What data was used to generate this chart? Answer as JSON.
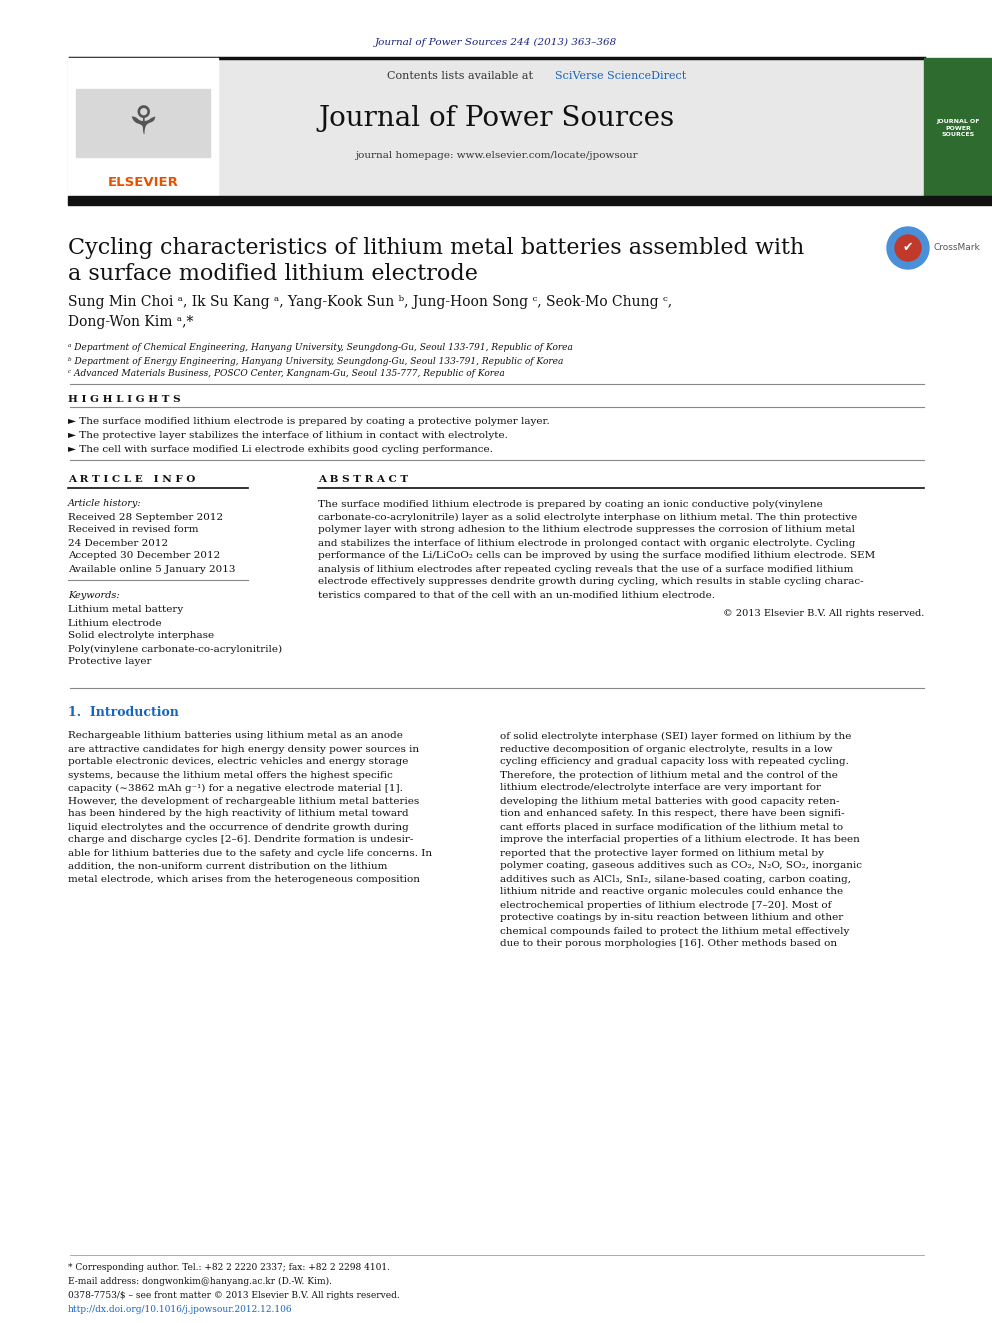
{
  "fig_width": 9.92,
  "fig_height": 13.23,
  "bg_color": "#ffffff",
  "journal_ref": "Journal of Power Sources 244 (2013) 363–368",
  "journal_ref_color": "#1a237e",
  "header_bg": "#e8e8e8",
  "header_text": "Contents lists available at ",
  "header_link": "SciVerse ScienceDirect",
  "header_link_color": "#1565c0",
  "journal_title": "Journal of Power Sources",
  "homepage_text": "journal homepage: www.elsevier.com/locate/jpowsour",
  "article_title_line1": "Cycling characteristics of lithium metal batteries assembled with",
  "article_title_line2": "a surface modified lithium electrode",
  "author_line1": "Sung Min Choi ᵃ, Ik Su Kang ᵃ, Yang-Kook Sun ᵇ, Jung-Hoon Song ᶜ, Seok-Mo Chung ᶜ,",
  "author_line2": "Dong-Won Kim ᵃ,*",
  "affil_a": "ᵃ Department of Chemical Engineering, Hanyang University, Seungdong-Gu, Seoul 133-791, Republic of Korea",
  "affil_b": "ᵇ Department of Energy Engineering, Hanyang University, Seungdong-Gu, Seoul 133-791, Republic of Korea",
  "affil_c": "ᶜ Advanced Materials Business, POSCO Center, Kangnam-Gu, Seoul 135-777, Republic of Korea",
  "highlights_title": "H I G H L I G H T S",
  "highlight1": "► The surface modified lithium electrode is prepared by coating a protective polymer layer.",
  "highlight2": "► The protective layer stabilizes the interface of lithium in contact with electrolyte.",
  "highlight3": "► The cell with surface modified Li electrode exhibits good cycling performance.",
  "article_info_title": "A R T I C L E   I N F O",
  "abstract_title": "A B S T R A C T",
  "article_history_label": "Article history:",
  "received": "Received 28 September 2012",
  "revised": "Received in revised form",
  "revised2": "24 December 2012",
  "accepted": "Accepted 30 December 2012",
  "available": "Available online 5 January 2013",
  "keywords_label": "Keywords:",
  "keyword1": "Lithium metal battery",
  "keyword2": "Lithium electrode",
  "keyword3": "Solid electrolyte interphase",
  "keyword4": "Poly(vinylene carbonate-co-acrylonitrile)",
  "keyword5": "Protective layer",
  "abstract_lines": [
    "The surface modified lithium electrode is prepared by coating an ionic conductive poly(vinylene",
    "carbonate-co-acrylonitrile) layer as a solid electrolyte interphase on lithium metal. The thin protective",
    "polymer layer with strong adhesion to the lithium electrode suppresses the corrosion of lithium metal",
    "and stabilizes the interface of lithium electrode in prolonged contact with organic electrolyte. Cycling",
    "performance of the Li/LiCoO₂ cells can be improved by using the surface modified lithium electrode. SEM",
    "analysis of lithium electrodes after repeated cycling reveals that the use of a surface modified lithium",
    "electrode effectively suppresses dendrite growth during cycling, which results in stable cycling charac-",
    "teristics compared to that of the cell with an un-modified lithium electrode."
  ],
  "copyright": "© 2013 Elsevier B.V. All rights reserved.",
  "intro_title": "1.  Introduction",
  "intro_col1_lines": [
    "Rechargeable lithium batteries using lithium metal as an anode",
    "are attractive candidates for high energy density power sources in",
    "portable electronic devices, electric vehicles and energy storage",
    "systems, because the lithium metal offers the highest specific",
    "capacity (∼3862 mAh g⁻¹) for a negative electrode material [1].",
    "However, the development of rechargeable lithium metal batteries",
    "has been hindered by the high reactivity of lithium metal toward",
    "liquid electrolytes and the occurrence of dendrite growth during",
    "charge and discharge cycles [2–6]. Dendrite formation is undesir-",
    "able for lithium batteries due to the safety and cycle life concerns. In",
    "addition, the non-uniform current distribution on the lithium",
    "metal electrode, which arises from the heterogeneous composition"
  ],
  "intro_col2_lines": [
    "of solid electrolyte interphase (SEI) layer formed on lithium by the",
    "reductive decomposition of organic electrolyte, results in a low",
    "cycling efficiency and gradual capacity loss with repeated cycling.",
    "Therefore, the protection of lithium metal and the control of the",
    "lithium electrode/electrolyte interface are very important for",
    "developing the lithium metal batteries with good capacity reten-",
    "tion and enhanced safety. In this respect, there have been signifi-",
    "cant efforts placed in surface modification of the lithium metal to",
    "improve the interfacial properties of a lithium electrode. It has been",
    "reported that the protective layer formed on lithium metal by",
    "polymer coating, gaseous additives such as CO₂, N₂O, SO₂, inorganic",
    "additives such as AlCl₃, SnI₂, silane-based coating, carbon coating,",
    "lithium nitride and reactive organic molecules could enhance the",
    "electrochemical properties of lithium electrode [7–20]. Most of",
    "protective coatings by in-situ reaction between lithium and other",
    "chemical compounds failed to protect the lithium metal effectively",
    "due to their porous morphologies [16]. Other methods based on"
  ],
  "footer_note": "* Corresponding author. Tel.: +82 2 2220 2337; fax: +82 2 2298 4101.",
  "footer_email": "E-mail address: dongwonkim@hanyang.ac.kr (D.-W. Kim).",
  "footer_issn": "0378-7753/$ – see front matter © 2013 Elsevier B.V. All rights reserved.",
  "footer_doi": "http://dx.doi.org/10.1016/j.jpowsour.2012.12.106",
  "orange_color": "#e65100",
  "blue_dark": "#1a237e",
  "blue_medium": "#1565c0"
}
